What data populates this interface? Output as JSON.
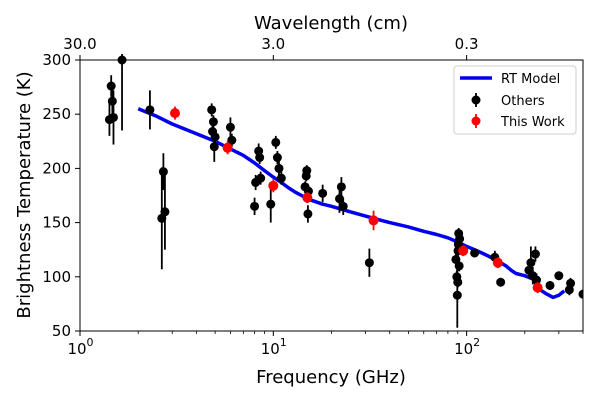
{
  "chart_data": {
    "type": "scatter",
    "xscale": "log",
    "xlim": [
      1,
      400
    ],
    "ylim": [
      50,
      300
    ],
    "xlabel": "Frequency (GHz)",
    "ylabel": "Brightness Temperature (K)",
    "top_axis": {
      "label": "Wavelength (cm)",
      "ticks": [
        {
          "label": "30.0",
          "freq": 1.0
        },
        {
          "label": "3.0",
          "freq": 10.0
        },
        {
          "label": "0.3",
          "freq": 100.0
        }
      ]
    },
    "yticks": [
      50,
      100,
      150,
      200,
      250,
      300
    ],
    "xticks": [
      {
        "value": 1,
        "label": "10",
        "exp": "0"
      },
      {
        "value": 10,
        "label": "10",
        "exp": "1"
      },
      {
        "value": 100,
        "label": "10",
        "exp": "2"
      }
    ],
    "legend": {
      "position": "top-right",
      "entries": [
        {
          "label": "RT Model",
          "kind": "line",
          "color": "#0000ee"
        },
        {
          "label": "Others",
          "kind": "marker",
          "color": "#000000"
        },
        {
          "label": "This Work",
          "kind": "marker",
          "color": "#ff0000"
        }
      ]
    },
    "series": [
      {
        "name": "RT Model",
        "kind": "line",
        "color": "#0000ee",
        "points": [
          [
            2.0,
            255
          ],
          [
            2.5,
            248
          ],
          [
            3,
            241
          ],
          [
            4,
            232
          ],
          [
            5,
            225
          ],
          [
            6,
            218
          ],
          [
            7,
            212
          ],
          [
            8,
            205
          ],
          [
            9,
            198
          ],
          [
            10,
            192
          ],
          [
            11,
            187
          ],
          [
            12,
            182
          ],
          [
            13,
            178
          ],
          [
            14,
            175
          ],
          [
            15,
            172
          ],
          [
            18,
            167
          ],
          [
            20,
            165
          ],
          [
            25,
            160
          ],
          [
            30,
            156
          ],
          [
            40,
            150
          ],
          [
            50,
            146
          ],
          [
            60,
            142
          ],
          [
            70,
            139
          ],
          [
            80,
            136
          ],
          [
            90,
            132
          ],
          [
            100,
            128
          ],
          [
            110,
            125
          ],
          [
            120,
            122
          ],
          [
            130,
            119
          ],
          [
            140,
            116
          ],
          [
            150,
            113
          ],
          [
            160,
            110
          ],
          [
            170,
            106
          ],
          [
            180,
            103
          ],
          [
            200,
            101
          ],
          [
            220,
            98
          ],
          [
            240,
            88
          ],
          [
            260,
            84
          ],
          [
            280,
            81
          ],
          [
            300,
            83
          ],
          [
            320,
            87
          ]
        ]
      },
      {
        "name": "Others",
        "kind": "errorbar",
        "color": "#000000",
        "points": [
          {
            "x": 1.42,
            "y": 245,
            "err": 15
          },
          {
            "x": 1.45,
            "y": 276,
            "err": 10
          },
          {
            "x": 1.47,
            "y": 262,
            "err": 12
          },
          {
            "x": 1.49,
            "y": 247,
            "err": 25
          },
          {
            "x": 1.65,
            "y": 300,
            "err": 65
          },
          {
            "x": 2.3,
            "y": 254,
            "err": 18
          },
          {
            "x": 2.65,
            "y": 154,
            "err": 47
          },
          {
            "x": 2.7,
            "y": 197,
            "err": 17
          },
          {
            "x": 2.75,
            "y": 160,
            "err": 35
          },
          {
            "x": 4.8,
            "y": 254,
            "err": 6
          },
          {
            "x": 4.85,
            "y": 234,
            "err": 6
          },
          {
            "x": 4.9,
            "y": 243,
            "err": 6
          },
          {
            "x": 4.95,
            "y": 220,
            "err": 14
          },
          {
            "x": 5.0,
            "y": 229,
            "err": 7
          },
          {
            "x": 6.0,
            "y": 238,
            "err": 9
          },
          {
            "x": 6.1,
            "y": 226,
            "err": 6
          },
          {
            "x": 8.0,
            "y": 165,
            "err": 8
          },
          {
            "x": 8.1,
            "y": 187,
            "err": 7
          },
          {
            "x": 8.4,
            "y": 216,
            "err": 7
          },
          {
            "x": 8.5,
            "y": 210,
            "err": 6
          },
          {
            "x": 8.6,
            "y": 191,
            "err": 6
          },
          {
            "x": 9.7,
            "y": 167,
            "err": 17
          },
          {
            "x": 10.3,
            "y": 224,
            "err": 6
          },
          {
            "x": 10.5,
            "y": 210,
            "err": 6
          },
          {
            "x": 10.7,
            "y": 200,
            "err": 8
          },
          {
            "x": 11.0,
            "y": 191,
            "err": 6
          },
          {
            "x": 14.6,
            "y": 183,
            "err": 5
          },
          {
            "x": 14.8,
            "y": 193,
            "err": 5
          },
          {
            "x": 14.9,
            "y": 198,
            "err": 5
          },
          {
            "x": 15.1,
            "y": 158,
            "err": 8
          },
          {
            "x": 15.2,
            "y": 179,
            "err": 5
          },
          {
            "x": 18.0,
            "y": 177,
            "err": 8
          },
          {
            "x": 22.0,
            "y": 172,
            "err": 13
          },
          {
            "x": 22.5,
            "y": 183,
            "err": 9
          },
          {
            "x": 23.0,
            "y": 165,
            "err": 8
          },
          {
            "x": 31.4,
            "y": 113,
            "err": 13
          },
          {
            "x": 88.0,
            "y": 116,
            "err": 6
          },
          {
            "x": 89.0,
            "y": 100,
            "err": 6
          },
          {
            "x": 89.5,
            "y": 83,
            "err": 30
          },
          {
            "x": 90.0,
            "y": 95,
            "err": 5
          },
          {
            "x": 90.3,
            "y": 124,
            "err": 6
          },
          {
            "x": 90.6,
            "y": 130,
            "err": 10
          },
          {
            "x": 91.0,
            "y": 140,
            "err": 5
          },
          {
            "x": 91.5,
            "y": 110,
            "err": 5
          },
          {
            "x": 92.0,
            "y": 135,
            "err": 5
          },
          {
            "x": 110.0,
            "y": 122,
            "err": 4
          },
          {
            "x": 140.0,
            "y": 118,
            "err": 6
          },
          {
            "x": 150.0,
            "y": 95,
            "err": 4
          },
          {
            "x": 210.0,
            "y": 106,
            "err": 6
          },
          {
            "x": 215.0,
            "y": 113,
            "err": 15
          },
          {
            "x": 220.0,
            "y": 101,
            "err": 8
          },
          {
            "x": 227.0,
            "y": 121,
            "err": 7
          },
          {
            "x": 230.0,
            "y": 97,
            "err": 6
          },
          {
            "x": 270.0,
            "y": 92,
            "err": 4
          },
          {
            "x": 300.0,
            "y": 101,
            "err": 4
          },
          {
            "x": 340.0,
            "y": 88,
            "err": 5
          },
          {
            "x": 345.0,
            "y": 94,
            "err": 5
          },
          {
            "x": 400.0,
            "y": 84,
            "err": 4
          }
        ]
      },
      {
        "name": "This Work",
        "kind": "errorbar",
        "color": "#ff0000",
        "points": [
          {
            "x": 3.1,
            "y": 251,
            "err": 6
          },
          {
            "x": 5.8,
            "y": 219,
            "err": 6
          },
          {
            "x": 10.0,
            "y": 184,
            "err": 6
          },
          {
            "x": 15.0,
            "y": 173,
            "err": 5
          },
          {
            "x": 33.0,
            "y": 152,
            "err": 9
          },
          {
            "x": 96.0,
            "y": 124,
            "err": 5
          },
          {
            "x": 145.0,
            "y": 113,
            "err": 5
          },
          {
            "x": 233.0,
            "y": 90,
            "err": 5
          }
        ]
      }
    ]
  }
}
